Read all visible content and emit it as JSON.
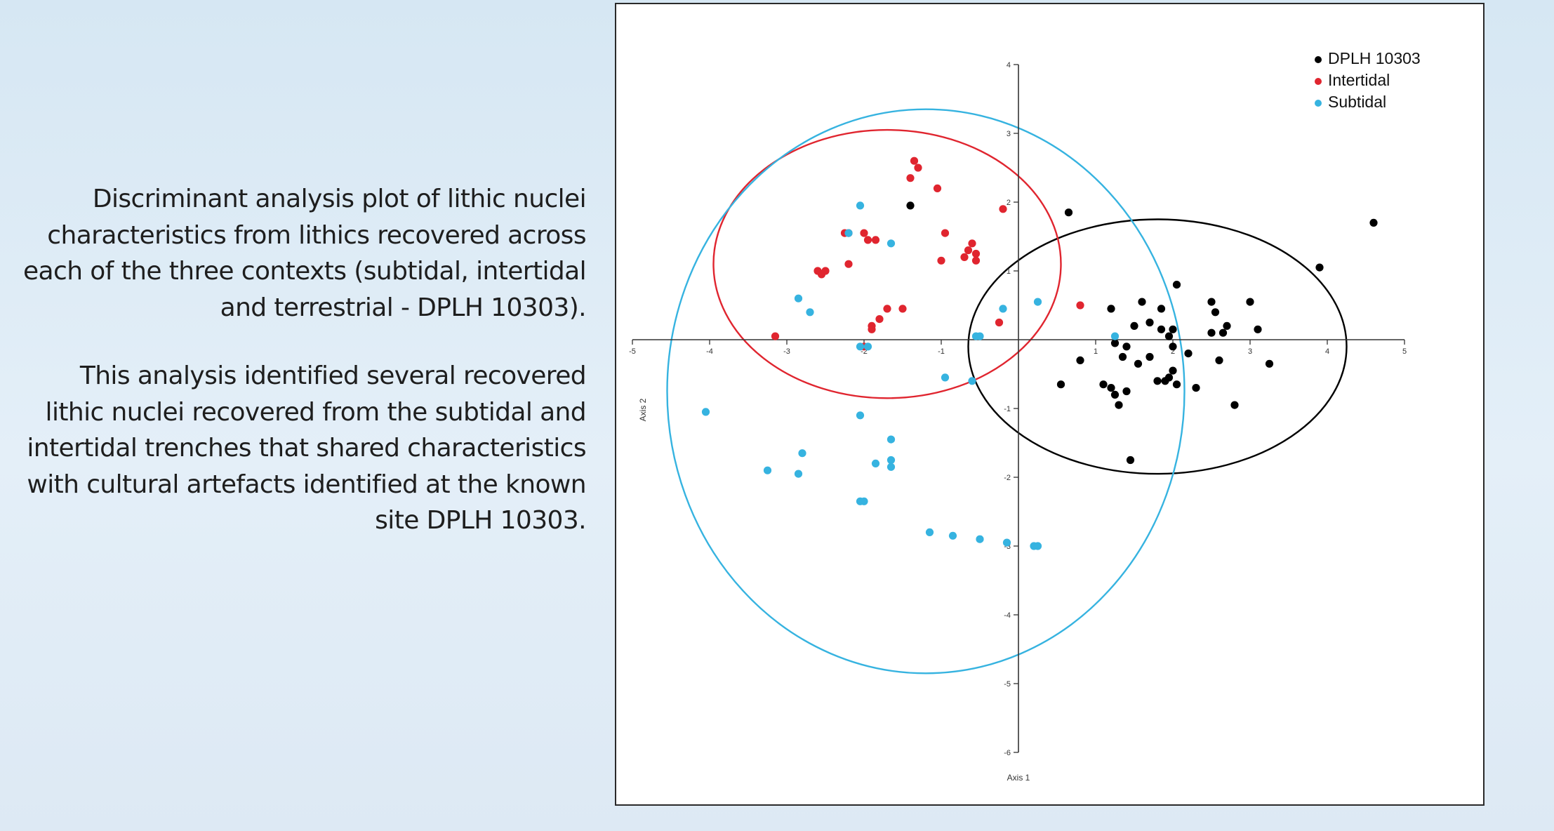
{
  "caption": {
    "paragraph1": "Discriminant analysis plot of lithic nuclei characteristics from lithics recovered across each of the three contexts (subtidal, intertidal and terrestrial - DPLH 10303).",
    "paragraph2": "This analysis identified several recovered lithic nuclei recovered from the subtidal and intertidal trenches that shared characteristics with cultural artefacts identified at the known site DPLH 10303."
  },
  "chart_data": {
    "type": "scatter",
    "xlabel": "Axis 1",
    "ylabel": "Axis 2",
    "xlim": [
      -5,
      5
    ],
    "ylim": [
      -6,
      4
    ],
    "x_ticks": [
      -5,
      -4,
      -3,
      -2,
      -1,
      1,
      2,
      3,
      4,
      5
    ],
    "y_ticks": [
      -6,
      -5,
      -4,
      -3,
      -2,
      -1,
      1,
      2,
      3,
      4
    ],
    "grid": false,
    "legend_position": "top-right",
    "series": [
      {
        "name": "DPLH 10303",
        "color": "#000000",
        "ellipse": {
          "cx": 1.8,
          "cy": -0.1,
          "rx": 2.45,
          "ry": 1.85
        },
        "points": [
          [
            -1.4,
            1.95
          ],
          [
            0.65,
            1.85
          ],
          [
            4.6,
            1.7
          ],
          [
            3.9,
            1.05
          ],
          [
            2.05,
            0.8
          ],
          [
            1.6,
            0.55
          ],
          [
            2.5,
            0.55
          ],
          [
            3.0,
            0.55
          ],
          [
            1.2,
            0.45
          ],
          [
            1.85,
            0.45
          ],
          [
            2.55,
            0.4
          ],
          [
            1.7,
            0.25
          ],
          [
            1.5,
            0.2
          ],
          [
            2.7,
            0.2
          ],
          [
            3.1,
            0.15
          ],
          [
            1.85,
            0.15
          ],
          [
            2.0,
            0.15
          ],
          [
            2.5,
            0.1
          ],
          [
            2.65,
            0.1
          ],
          [
            1.95,
            0.05
          ],
          [
            1.25,
            -0.05
          ],
          [
            1.4,
            -0.1
          ],
          [
            2.0,
            -0.1
          ],
          [
            2.2,
            -0.2
          ],
          [
            1.35,
            -0.25
          ],
          [
            1.7,
            -0.25
          ],
          [
            0.8,
            -0.3
          ],
          [
            2.6,
            -0.3
          ],
          [
            3.25,
            -0.35
          ],
          [
            1.55,
            -0.35
          ],
          [
            2.0,
            -0.45
          ],
          [
            1.95,
            -0.55
          ],
          [
            1.8,
            -0.6
          ],
          [
            1.9,
            -0.6
          ],
          [
            0.55,
            -0.65
          ],
          [
            2.05,
            -0.65
          ],
          [
            1.1,
            -0.65
          ],
          [
            1.2,
            -0.7
          ],
          [
            2.3,
            -0.7
          ],
          [
            1.4,
            -0.75
          ],
          [
            1.25,
            -0.8
          ],
          [
            1.3,
            -0.95
          ],
          [
            2.8,
            -0.95
          ],
          [
            1.45,
            -1.75
          ]
        ]
      },
      {
        "name": "Intertidal",
        "color": "#e0252f",
        "ellipse": {
          "cx": -1.7,
          "cy": 1.1,
          "rx": 2.25,
          "ry": 1.95
        },
        "points": [
          [
            -1.35,
            2.6
          ],
          [
            -1.3,
            2.5
          ],
          [
            -1.4,
            2.35
          ],
          [
            -1.05,
            2.2
          ],
          [
            -0.2,
            1.9
          ],
          [
            -2.25,
            1.55
          ],
          [
            -2.2,
            1.55
          ],
          [
            -2.0,
            1.55
          ],
          [
            -0.95,
            1.55
          ],
          [
            -1.85,
            1.45
          ],
          [
            -0.6,
            1.4
          ],
          [
            -0.65,
            1.3
          ],
          [
            -1.95,
            1.45
          ],
          [
            -0.55,
            1.25
          ],
          [
            -0.7,
            1.2
          ],
          [
            -1.0,
            1.15
          ],
          [
            -0.55,
            1.15
          ],
          [
            -2.2,
            1.1
          ],
          [
            -2.6,
            1.0
          ],
          [
            -2.5,
            1.0
          ],
          [
            -2.55,
            0.95
          ],
          [
            -1.7,
            0.45
          ],
          [
            -1.5,
            0.45
          ],
          [
            -1.8,
            0.3
          ],
          [
            0.8,
            0.5
          ],
          [
            -0.25,
            0.25
          ],
          [
            -1.9,
            0.2
          ],
          [
            -1.9,
            0.15
          ],
          [
            -3.15,
            0.05
          ],
          [
            -2.0,
            -0.1
          ]
        ]
      },
      {
        "name": "Subtidal",
        "color": "#36b3e0",
        "ellipse": {
          "cx": -1.2,
          "cy": -0.75,
          "rx": 3.35,
          "ry": 4.1
        },
        "points": [
          [
            -2.05,
            1.95
          ],
          [
            -2.2,
            1.55
          ],
          [
            -1.65,
            1.4
          ],
          [
            -2.85,
            0.6
          ],
          [
            -2.7,
            0.4
          ],
          [
            0.25,
            0.55
          ],
          [
            -0.2,
            0.45
          ],
          [
            -0.55,
            0.05
          ],
          [
            -0.5,
            0.05
          ],
          [
            -2.05,
            -0.1
          ],
          [
            -1.95,
            -0.1
          ],
          [
            1.25,
            0.05
          ],
          [
            -0.95,
            -0.55
          ],
          [
            -0.6,
            -0.6
          ],
          [
            -4.05,
            -1.05
          ],
          [
            -2.05,
            -1.1
          ],
          [
            -1.65,
            -1.45
          ],
          [
            -2.8,
            -1.65
          ],
          [
            -1.65,
            -1.75
          ],
          [
            -1.85,
            -1.8
          ],
          [
            -1.65,
            -1.85
          ],
          [
            -3.25,
            -1.9
          ],
          [
            -2.85,
            -1.95
          ],
          [
            -2.05,
            -2.35
          ],
          [
            -2.0,
            -2.35
          ],
          [
            -1.15,
            -2.8
          ],
          [
            -0.85,
            -2.85
          ],
          [
            -0.5,
            -2.9
          ],
          [
            -0.15,
            -2.95
          ],
          [
            0.2,
            -3.0
          ],
          [
            0.25,
            -3.0
          ]
        ]
      }
    ]
  }
}
